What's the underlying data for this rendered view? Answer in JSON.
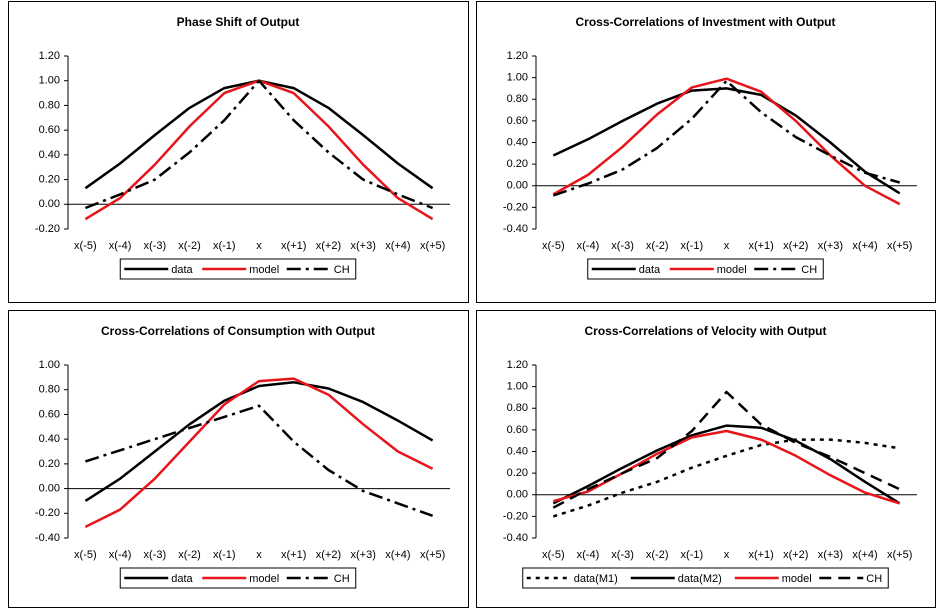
{
  "chart_data": [
    {
      "type": "line",
      "title": "Phase Shift of Output",
      "categories": [
        "x(-5)",
        "x(-4)",
        "x(-3)",
        "x(-2)",
        "x(-1)",
        "x",
        "x(+1)",
        "x(+2)",
        "x(+3)",
        "x(+4)",
        "x(+5)"
      ],
      "ylim": [
        -0.2,
        1.2
      ],
      "yticks": [
        {
          "value": -0.2,
          "label": "-0.20"
        },
        {
          "value": 0,
          "label": "0.00"
        },
        {
          "value": 0.2,
          "label": "0.20"
        },
        {
          "value": 0.4,
          "label": "0.40"
        },
        {
          "value": 0.6,
          "label": "0.60"
        },
        {
          "value": 0.8,
          "label": "0.80"
        },
        {
          "value": 1,
          "label": "1.00"
        },
        {
          "value": 1.2,
          "label": "1.20"
        }
      ],
      "series": [
        {
          "name": "data",
          "color": "#000000",
          "dash": "solid",
          "values": [
            0.13,
            0.33,
            0.56,
            0.78,
            0.94,
            1.0,
            0.94,
            0.78,
            0.56,
            0.33,
            0.13
          ]
        },
        {
          "name": "model",
          "color": "#e8141b",
          "dash": "solid",
          "values": [
            -0.12,
            0.05,
            0.32,
            0.63,
            0.9,
            1.0,
            0.9,
            0.63,
            0.32,
            0.05,
            -0.12
          ]
        },
        {
          "name": "CH",
          "color": "#000000",
          "dash": "dash-dot",
          "values": [
            -0.03,
            0.08,
            0.2,
            0.42,
            0.68,
            1.0,
            0.68,
            0.42,
            0.2,
            0.08,
            -0.03
          ]
        }
      ]
    },
    {
      "type": "line",
      "title": "Cross-Correlations of Investment with Output",
      "categories": [
        "x(-5)",
        "x(-4)",
        "x(-3)",
        "x(-2)",
        "x(-1)",
        "x",
        "x(+1)",
        "x(+2)",
        "x(+3)",
        "x(+4)",
        "x(+5)"
      ],
      "ylim": [
        -0.4,
        1.2
      ],
      "yticks": [
        {
          "value": -0.4,
          "label": "-0.40"
        },
        {
          "value": -0.2,
          "label": "-0.20"
        },
        {
          "value": 0,
          "label": "0.00"
        },
        {
          "value": 0.2,
          "label": "0.20"
        },
        {
          "value": 0.4,
          "label": "0.40"
        },
        {
          "value": 0.6,
          "label": "0.60"
        },
        {
          "value": 0.8,
          "label": "0.80"
        },
        {
          "value": 1,
          "label": "1.00"
        },
        {
          "value": 1.2,
          "label": "1.20"
        }
      ],
      "series": [
        {
          "name": "data",
          "color": "#000000",
          "dash": "solid",
          "values": [
            0.28,
            0.43,
            0.6,
            0.76,
            0.88,
            0.9,
            0.84,
            0.65,
            0.4,
            0.13,
            -0.07
          ]
        },
        {
          "name": "model",
          "color": "#e8141b",
          "dash": "solid",
          "values": [
            -0.08,
            0.1,
            0.36,
            0.66,
            0.91,
            0.99,
            0.87,
            0.6,
            0.28,
            0.0,
            -0.17
          ]
        },
        {
          "name": "CH",
          "color": "#000000",
          "dash": "dash-dot",
          "values": [
            -0.09,
            0.02,
            0.15,
            0.35,
            0.62,
            0.97,
            0.68,
            0.45,
            0.28,
            0.12,
            0.03
          ]
        }
      ]
    },
    {
      "type": "line",
      "title": "Cross-Correlations of Consumption with Output",
      "categories": [
        "x(-5)",
        "x(-4)",
        "x(-3)",
        "x(-2)",
        "x(-1)",
        "x",
        "x(+1)",
        "x(+2)",
        "x(+3)",
        "x(+4)",
        "x(+5)"
      ],
      "ylim": [
        -0.4,
        1.0
      ],
      "yticks": [
        {
          "value": -0.4,
          "label": "-0.40"
        },
        {
          "value": -0.2,
          "label": "-0.20"
        },
        {
          "value": 0,
          "label": "0.00"
        },
        {
          "value": 0.2,
          "label": "0.20"
        },
        {
          "value": 0.4,
          "label": "0.40"
        },
        {
          "value": 0.6,
          "label": "0.60"
        },
        {
          "value": 0.8,
          "label": "0.80"
        },
        {
          "value": 1,
          "label": "1.00"
        }
      ],
      "series": [
        {
          "name": "data",
          "color": "#000000",
          "dash": "solid",
          "values": [
            -0.1,
            0.08,
            0.3,
            0.52,
            0.71,
            0.83,
            0.86,
            0.81,
            0.7,
            0.55,
            0.39
          ]
        },
        {
          "name": "model",
          "color": "#e8141b",
          "dash": "solid",
          "values": [
            -0.31,
            -0.17,
            0.08,
            0.38,
            0.68,
            0.87,
            0.89,
            0.76,
            0.52,
            0.3,
            0.16
          ]
        },
        {
          "name": "CH",
          "color": "#000000",
          "dash": "dash-dot",
          "values": [
            0.22,
            0.31,
            0.4,
            0.49,
            0.58,
            0.67,
            0.38,
            0.15,
            -0.02,
            -0.12,
            -0.22
          ]
        }
      ]
    },
    {
      "type": "line",
      "title": "Cross-Correlations of Velocity with Output",
      "categories": [
        "x(-5)",
        "x(-4)",
        "x(-3)",
        "x(-2)",
        "x(-1)",
        "x",
        "x(+1)",
        "x(+2)",
        "x(+3)",
        "x(+4)",
        "x(+5)"
      ],
      "ylim": [
        -0.4,
        1.2
      ],
      "yticks": [
        {
          "value": -0.4,
          "label": "-0.40"
        },
        {
          "value": -0.2,
          "label": "-0.20"
        },
        {
          "value": 0,
          "label": "0.00"
        },
        {
          "value": 0.2,
          "label": "0.20"
        },
        {
          "value": 0.4,
          "label": "0.40"
        },
        {
          "value": 0.6,
          "label": "0.60"
        },
        {
          "value": 0.8,
          "label": "0.80"
        },
        {
          "value": 1,
          "label": "1.00"
        },
        {
          "value": 1.2,
          "label": "1.20"
        }
      ],
      "series": [
        {
          "name": "data(M1)",
          "color": "#000000",
          "dash": "dot",
          "values": [
            -0.2,
            -0.1,
            0.02,
            0.12,
            0.25,
            0.36,
            0.46,
            0.51,
            0.51,
            0.48,
            0.43
          ]
        },
        {
          "name": "data(M2)",
          "color": "#000000",
          "dash": "solid",
          "values": [
            -0.08,
            0.08,
            0.25,
            0.41,
            0.55,
            0.64,
            0.62,
            0.5,
            0.33,
            0.12,
            -0.08
          ]
        },
        {
          "name": "model",
          "color": "#e8141b",
          "dash": "solid",
          "values": [
            -0.06,
            0.03,
            0.2,
            0.38,
            0.53,
            0.59,
            0.51,
            0.36,
            0.18,
            0.02,
            -0.08
          ]
        },
        {
          "name": "CH",
          "color": "#000000",
          "dash": "dash",
          "values": [
            -0.12,
            0.05,
            0.2,
            0.34,
            0.59,
            0.95,
            0.65,
            0.48,
            0.35,
            0.2,
            0.05
          ]
        }
      ]
    }
  ]
}
